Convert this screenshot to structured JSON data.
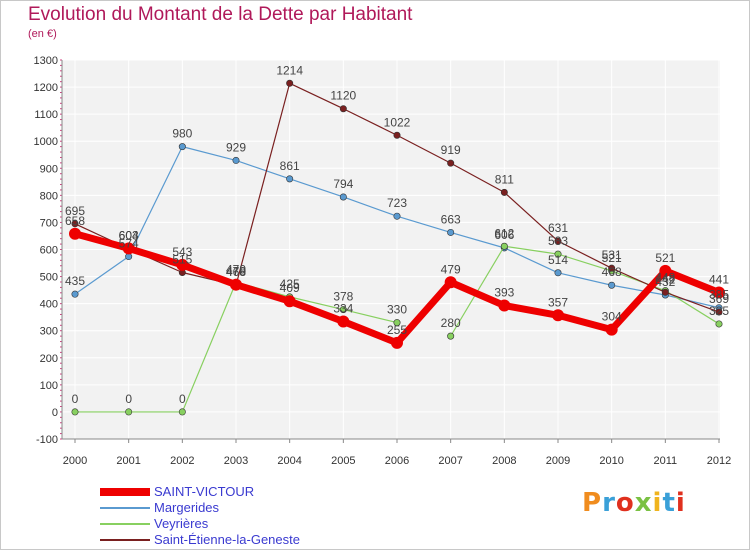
{
  "header": {
    "title": "Evolution du Montant de la Dette par Habitant",
    "subtitle": "(en €)"
  },
  "logo": {
    "text": "Proxiti",
    "letters": [
      "P",
      "r",
      "o",
      "x",
      "i",
      "t",
      "i"
    ],
    "colors": [
      "#f08c1e",
      "#3aa0d8",
      "#e0301e",
      "#7ac143",
      "#f0b41e",
      "#3aa0d8",
      "#e0301e"
    ]
  },
  "chart_data": {
    "type": "line",
    "title": "Evolution du Montant de la Dette par Habitant",
    "subtitle": "(en €)",
    "xlabel": "",
    "ylabel": "",
    "x": [
      2000,
      2001,
      2002,
      2003,
      2004,
      2005,
      2006,
      2007,
      2008,
      2009,
      2010,
      2011,
      2012
    ],
    "ylim": [
      -100,
      1300
    ],
    "yticks": [
      -100,
      0,
      100,
      200,
      300,
      400,
      500,
      600,
      700,
      800,
      900,
      1000,
      1100,
      1200,
      1300
    ],
    "grid": true,
    "legend_position": "bottom-left",
    "series": [
      {
        "name": "SAINT-VICTOUR",
        "color": "#ee0000",
        "values": [
          658,
          604,
          543,
          470,
          409,
          334,
          255,
          479,
          393,
          357,
          304,
          521,
          441
        ],
        "value_labels": [
          "658",
          "604",
          "543",
          "470",
          "409",
          "334",
          "255",
          "479",
          "393",
          "357",
          "304",
          "521",
          "441"
        ]
      },
      {
        "name": "Margerides",
        "color": "#5a9ad0",
        "values": [
          435,
          574,
          980,
          929,
          861,
          794,
          723,
          663,
          606,
          514,
          468,
          432,
          385
        ],
        "value_labels": [
          "435",
          "574",
          "980",
          "929",
          "861",
          "794",
          "723",
          "663",
          "606",
          "514",
          "468",
          "432",
          "385"
        ]
      },
      {
        "name": "Veyrières",
        "color": "#88d060",
        "values": [
          0,
          0,
          0,
          479,
          425,
          378,
          330,
          280,
          612,
          583,
          521,
          448,
          325
        ],
        "connected": [
          true,
          true,
          true,
          true,
          true,
          true,
          true,
          false,
          true,
          true,
          true,
          true,
          true
        ],
        "value_labels": [
          "0",
          "0",
          "0",
          "479",
          "425",
          "378",
          "330",
          "280",
          "612",
          "583",
          "521",
          "448",
          "325"
        ]
      },
      {
        "name": "Saint-Étienne-la-Geneste",
        "color": "#7a2020",
        "values": [
          695,
          603,
          515,
          468,
          1214,
          1120,
          1022,
          919,
          811,
          631,
          531,
          442,
          369
        ],
        "value_labels": [
          "695",
          "603",
          "515",
          "468",
          "1214",
          "1120",
          "1022",
          "919",
          "811",
          "631",
          "531",
          "442",
          "369"
        ]
      }
    ]
  }
}
